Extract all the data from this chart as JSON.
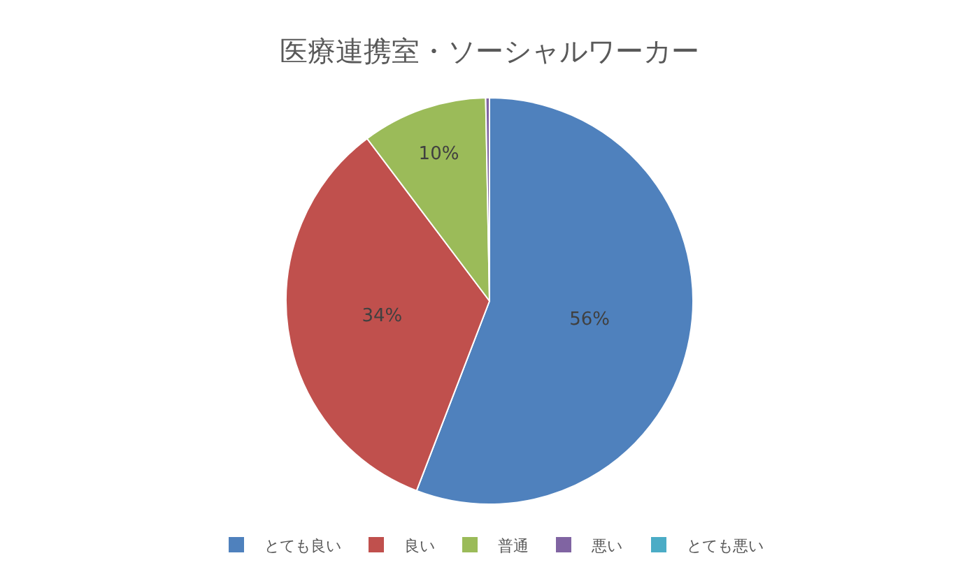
{
  "chart_data": {
    "type": "pie",
    "title": "医療連携室・ソーシャルワーカー",
    "categories": [
      "とても良い",
      "良い",
      "普通",
      "悪い",
      "とても悪い"
    ],
    "values": [
      56,
      34,
      10,
      0.3,
      0
    ],
    "value_labels": [
      "56%",
      "34%",
      "10%",
      null,
      null
    ],
    "colors": [
      "#4f81bd",
      "#c0504d",
      "#9bbb59",
      "#8064a2",
      "#4bacc6"
    ],
    "legend": "bottom"
  }
}
